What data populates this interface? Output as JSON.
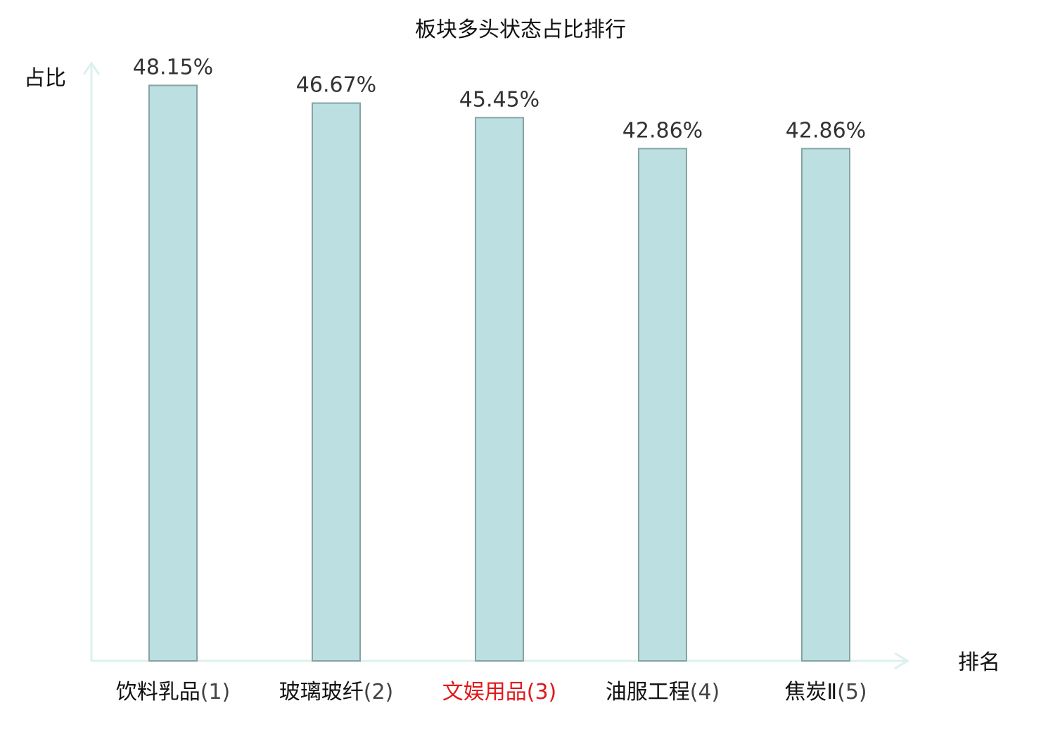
{
  "chart_data": {
    "type": "bar",
    "title": "板块多头状态占比排行",
    "ylabel": "占比",
    "xlabel": "排名",
    "unit": "%",
    "ylim": [
      0,
      50
    ],
    "grid": false,
    "categories": [
      {
        "name": "饮料乳品",
        "rank": "(1)",
        "highlight": false
      },
      {
        "name": "玻璃玻纤",
        "rank": "(2)",
        "highlight": false
      },
      {
        "name": "文娱用品",
        "rank": "(3)",
        "highlight": true
      },
      {
        "name": "油服工程",
        "rank": "(4)",
        "highlight": false
      },
      {
        "name": "焦炭Ⅱ",
        "rank": "(5)",
        "highlight": false
      }
    ],
    "values": [
      48.15,
      46.67,
      45.45,
      42.86,
      42.86
    ],
    "value_labels": [
      "48.15%",
      "46.67%",
      "45.45%",
      "42.86%",
      "42.86%"
    ]
  },
  "colors": {
    "bar_fill": "#bce0e1",
    "bar_stroke": "#86a3a4",
    "axis": "#dcf0ee",
    "label_text": "#111111",
    "rank_text": "#444444",
    "highlight_text": "#e0191b",
    "value_text": "#333333"
  }
}
